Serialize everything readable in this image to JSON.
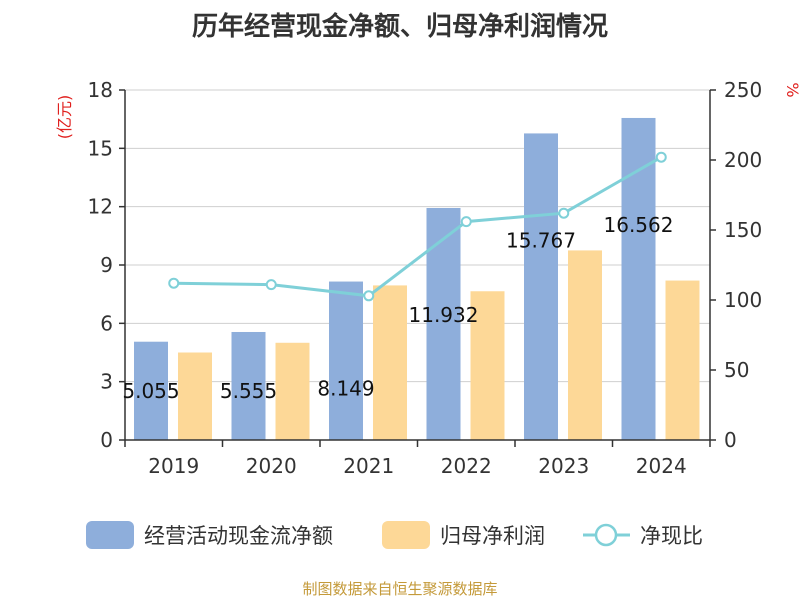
{
  "chart_data": {
    "type": "bar",
    "title": "历年经营现金净额、归母净利润情况",
    "categories": [
      "2019",
      "2020",
      "2021",
      "2022",
      "2023",
      "2024"
    ],
    "left_axis": {
      "unit": "(亿元)",
      "ylim": [
        0,
        18
      ],
      "ticks": [
        0,
        3,
        6,
        9,
        12,
        15,
        18
      ]
    },
    "right_axis": {
      "unit": "%",
      "ylim": [
        0,
        250
      ],
      "ticks": [
        0,
        50,
        100,
        150,
        200,
        250
      ]
    },
    "series": [
      {
        "name": "经营活动现金流净额",
        "type": "bar",
        "axis": "left",
        "color": "#8eaedb",
        "values": [
          5.055,
          5.555,
          8.149,
          11.932,
          15.767,
          16.562
        ],
        "labels": [
          "5.055",
          "5.555",
          "8.149",
          "11.932",
          "15.767",
          "16.562"
        ]
      },
      {
        "name": "归母净利润",
        "type": "bar",
        "axis": "left",
        "color": "#fdd897",
        "values": [
          4.5,
          5.0,
          7.95,
          7.65,
          9.75,
          8.2
        ]
      },
      {
        "name": "净现比",
        "type": "line",
        "axis": "right",
        "color": "#7fd0d8",
        "values": [
          112,
          111,
          103,
          156,
          162,
          202
        ]
      }
    ],
    "grid": true,
    "legend_position": "bottom"
  },
  "source_text": "制图数据来自恒生聚源数据库"
}
